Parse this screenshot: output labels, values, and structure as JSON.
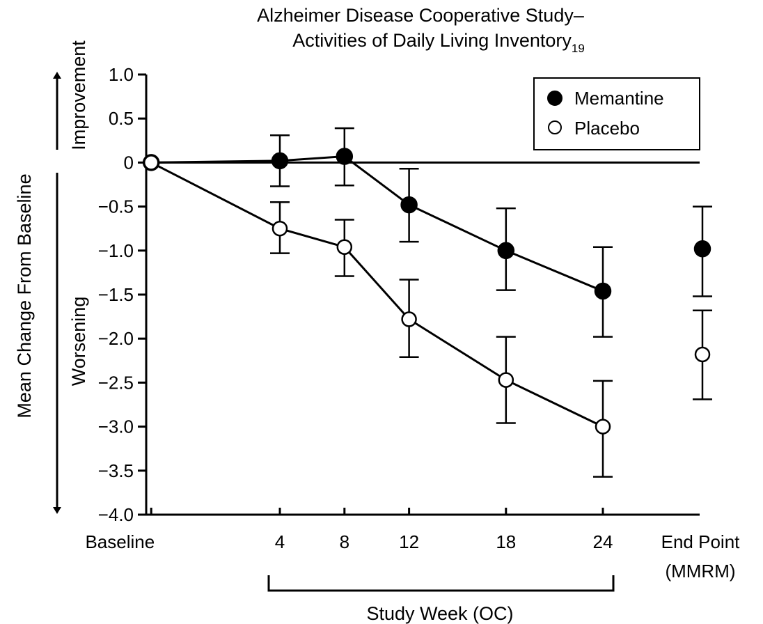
{
  "chart_data": {
    "type": "line",
    "title_line1": "Alzheimer Disease Cooperative Study–",
    "title_line2": "Activities of Daily Living Inventory",
    "title_subscript": "19",
    "ylabel": "Mean Change From Baseline",
    "y_direction_up": "Improvement",
    "y_direction_down": "Worsening",
    "xlabel": "Study Week (OC)",
    "ylim": [
      -4.0,
      1.0
    ],
    "y_ticks": [
      1.0,
      0.5,
      0,
      -0.5,
      -1.0,
      -1.5,
      -2.0,
      -2.5,
      -3.0,
      -3.5,
      -4.0
    ],
    "y_tick_labels": [
      "1.0",
      "0.5",
      "0",
      "−0.5",
      "−1.0",
      "−1.5",
      "−2.0",
      "−2.5",
      "−3.0",
      "−3.5",
      "−4.0"
    ],
    "x_weeks": [
      0,
      4,
      8,
      12,
      18,
      24
    ],
    "x_tick_labels": [
      "Baseline",
      "4",
      "8",
      "12",
      "18",
      "24"
    ],
    "endpoint_label_line1": "End Point",
    "endpoint_label_line2": "(MMRM)",
    "legend_position": "top-right",
    "grid": false,
    "series": [
      {
        "name": "Memantine",
        "marker": "filled-circle",
        "color": "#000000",
        "values": [
          0,
          0.02,
          0.07,
          -0.48,
          -1.0,
          -1.46
        ],
        "error_upper": [
          null,
          0.31,
          0.39,
          -0.07,
          -0.52,
          -0.96
        ],
        "error_lower": [
          null,
          -0.27,
          -0.26,
          -0.9,
          -1.45,
          -1.98
        ],
        "endpoint": {
          "value": -0.98,
          "upper": -0.5,
          "lower": -1.52
        }
      },
      {
        "name": "Placebo",
        "marker": "open-circle",
        "color": "#000000",
        "values": [
          0,
          -0.75,
          -0.96,
          -1.78,
          -2.47,
          -3.0
        ],
        "error_upper": [
          null,
          -0.45,
          -0.65,
          -1.33,
          -1.98,
          -2.48
        ],
        "error_lower": [
          null,
          -1.03,
          -1.29,
          -2.21,
          -2.96,
          -3.57
        ],
        "endpoint": {
          "value": -2.18,
          "upper": -1.68,
          "lower": -2.69
        }
      }
    ]
  }
}
